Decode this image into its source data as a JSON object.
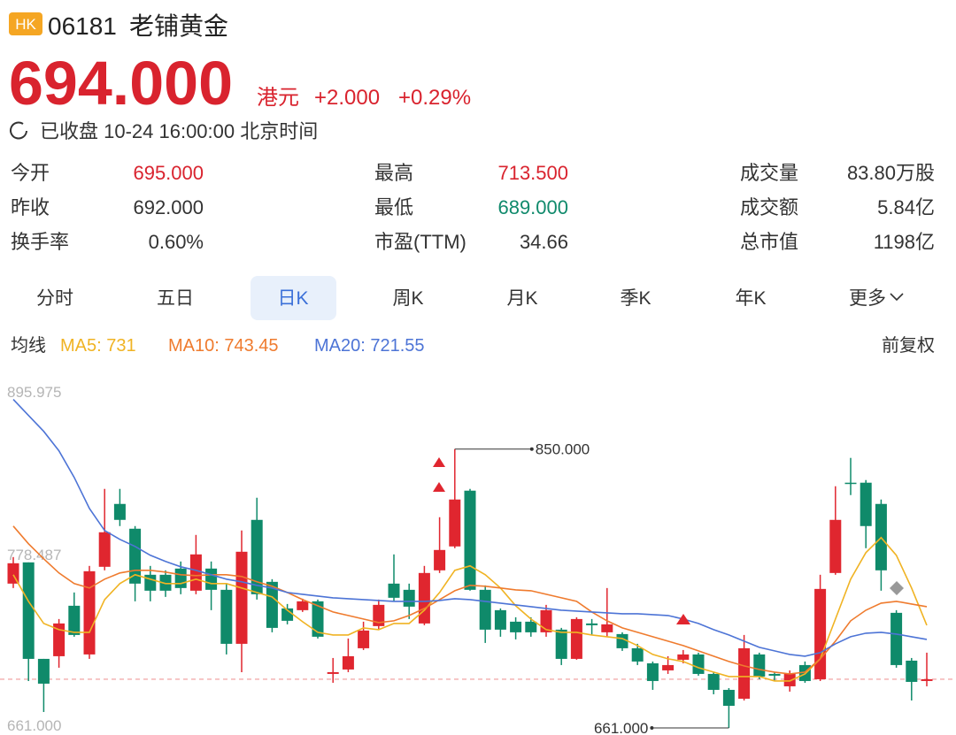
{
  "header": {
    "badge": "HK",
    "code": "06181",
    "name": "老铺黄金",
    "price": "694.000",
    "currency": "港元",
    "change": "+2.000",
    "change_pct": "+0.29%",
    "status": "已收盘 10-24 16:00:00 北京时间"
  },
  "stats": [
    [
      {
        "label": "今开",
        "value": "695.000",
        "tone": "up"
      },
      {
        "label": "最高",
        "value": "713.500",
        "tone": "up"
      },
      {
        "label": "成交量",
        "value": "83.80万股",
        "tone": "plain"
      }
    ],
    [
      {
        "label": "昨收",
        "value": "692.000",
        "tone": "plain"
      },
      {
        "label": "最低",
        "value": "689.000",
        "tone": "down"
      },
      {
        "label": "成交额",
        "value": "5.84亿",
        "tone": "plain"
      }
    ],
    [
      {
        "label": "换手率",
        "value": "0.60%",
        "tone": "plain"
      },
      {
        "label": "市盈(TTM)",
        "value": "34.66",
        "tone": "plain"
      },
      {
        "label": "总市值",
        "value": "1198亿",
        "tone": "plain"
      }
    ]
  ],
  "tabs": {
    "items": [
      "分时",
      "五日",
      "日K",
      "周K",
      "月K",
      "季K",
      "年K",
      "更多"
    ],
    "active": 2
  },
  "indicators": {
    "title": "均线",
    "items": [
      "MA5: 731",
      "MA10: 743.45",
      "MA20: 721.55"
    ],
    "colors": [
      "#f0b323",
      "#ef7b2e",
      "#4d74d6"
    ],
    "adjust": "前复权"
  },
  "chart_data": {
    "type": "candlestick",
    "up_color": "#e0262f",
    "down_color": "#0f8a6a",
    "ylim": [
      661,
      895.975
    ],
    "yticks": [
      {
        "value": 661,
        "label": "661.000"
      },
      778.487,
      895.975
    ],
    "price_line": 694,
    "open": [
      758.8,
      773.2,
      707.8,
      709.6,
      743.8,
      710.8,
      770.2,
      812.8,
      796,
      764.8,
      764.8,
      769,
      754,
      769,
      754.6,
      718,
      802,
      760,
      742,
      740.8,
      746.8,
      697.6,
      700.6,
      715,
      730,
      758.8,
      754.6,
      731.8,
      767.8,
      784,
      821.8,
      754.6,
      740.8,
      733,
      733,
      725.8,
      727.6,
      707.8,
      731.8,
      725.8,
      724.6,
      715,
      704.8,
      700,
      707.2,
      710.8,
      697.6,
      686.8,
      680.8,
      710.8,
      697.6,
      689.2,
      703.6,
      694,
      766,
      827.2,
      827.2,
      812.8,
      739,
      706.6,
      692.8
    ],
    "high": [
      776.8,
      773.2,
      707.8,
      734.8,
      752.8,
      770.8,
      823,
      823,
      797.8,
      770.8,
      767.8,
      773.8,
      791.8,
      773.8,
      758.8,
      794.8,
      817,
      761.8,
      745,
      748.6,
      748,
      708.4,
      721.6,
      733,
      748,
      778.6,
      758.8,
      770.8,
      803.8,
      850,
      823,
      757.6,
      742,
      736,
      736,
      744.4,
      728.8,
      736,
      734.8,
      755.8,
      725.8,
      718,
      706,
      709.6,
      713.8,
      712,
      698.8,
      688,
      724,
      712,
      698.8,
      700,
      706,
      764.8,
      824.8,
      844,
      829,
      815.8,
      740.8,
      708.4,
      712
    ],
    "low": [
      755.8,
      692.8,
      671.8,
      701.8,
      722.8,
      707.8,
      767.8,
      797.8,
      746.8,
      746.8,
      749.8,
      751.6,
      751.6,
      740.8,
      710.8,
      698.8,
      748,
      725.8,
      731.2,
      739.6,
      721.6,
      691.6,
      698.8,
      713.8,
      727.6,
      746.8,
      734.8,
      730.6,
      766,
      782.8,
      754,
      718.6,
      722.8,
      721,
      722.8,
      722.8,
      703.6,
      707.2,
      724,
      722.8,
      713.2,
      703.6,
      686.8,
      697.6,
      704.8,
      696.4,
      683.8,
      661,
      679.6,
      694,
      692.8,
      685.6,
      691.6,
      692.8,
      764.8,
      818.8,
      782.8,
      754,
      701.8,
      679.6,
      689.2
    ],
    "close": [
      772.6,
      707.8,
      691,
      731.8,
      724,
      767.2,
      793.6,
      802,
      758.8,
      754,
      754,
      755.8,
      778.6,
      754.6,
      718,
      780.4,
      751.6,
      728.8,
      733.6,
      746.8,
      722.8,
      698.8,
      709.6,
      727,
      744.4,
      749.2,
      743.2,
      766,
      781.6,
      815.8,
      754.6,
      727.6,
      727.6,
      725.8,
      725.8,
      740.8,
      707.8,
      734.8,
      730.6,
      731.2,
      715,
      706,
      692.8,
      703.6,
      710.8,
      697.6,
      686.8,
      676,
      715,
      695.8,
      696.4,
      697.6,
      692.8,
      755.2,
      802,
      826.6,
      797.8,
      767.8,
      703.6,
      692.2,
      694
    ],
    "lines": [
      {
        "color": "#f0b323",
        "values": [
          764.8,
          746.8,
          731.8,
          727.6,
          725.8,
          725.8,
          748,
          758.8,
          764.8,
          761.8,
          758.8,
          758.8,
          761.8,
          758.8,
          758.8,
          755.8,
          752.8,
          749.8,
          740.8,
          733,
          725.8,
          724,
          724,
          728.8,
          727.6,
          731.8,
          731.8,
          740.8,
          752.8,
          767.8,
          770.8,
          764.8,
          755.8,
          743.8,
          734.8,
          727.6,
          725.8,
          725.8,
          724,
          722.8,
          721.6,
          716.8,
          710.8,
          707.8,
          706,
          701.8,
          698.8,
          695.8,
          695.8,
          695.8,
          692.8,
          692.8,
          697.6,
          707.8,
          734.8,
          761.8,
          779.8,
          790,
          778,
          755.8,
          730.6
        ]
      },
      {
        "color": "#ef7b2e",
        "values": [
          797.8,
          785.8,
          775.6,
          766,
          758.8,
          755.8,
          761.8,
          766,
          767.8,
          767.8,
          766.6,
          764.8,
          764.2,
          764.8,
          764.8,
          763.6,
          760,
          757,
          752.8,
          748,
          743.8,
          739.6,
          737.2,
          734.8,
          732.4,
          733.6,
          737.2,
          742,
          748,
          754,
          757.6,
          757,
          755.8,
          754.6,
          754,
          751.6,
          749.2,
          746.8,
          739.6,
          733.6,
          728.8,
          725.8,
          722.8,
          719.8,
          716.8,
          713.2,
          709.6,
          706,
          703,
          700.6,
          698.8,
          697.6,
          698.8,
          707.8,
          719.8,
          733.6,
          740.8,
          745.6,
          746.8,
          745,
          743.2
        ]
      },
      {
        "color": "#4d74d6",
        "values": [
          883.6,
          872.8,
          862,
          848.8,
          830.8,
          809.8,
          794.8,
          788.8,
          784,
          778,
          773.8,
          770.2,
          767.8,
          764.8,
          761.8,
          760,
          757.6,
          755.8,
          752.8,
          751.6,
          750.4,
          749.2,
          748.6,
          748,
          747.4,
          746.8,
          746.8,
          746.8,
          747.4,
          748.6,
          748,
          746.8,
          745.6,
          744.4,
          743.2,
          742,
          740.8,
          740.2,
          739.6,
          739,
          738.4,
          738.4,
          737.8,
          737.2,
          734.8,
          731.8,
          727.6,
          724,
          719.8,
          715.6,
          713.2,
          710.8,
          709.6,
          712,
          718,
          722.8,
          725.2,
          725.8,
          724.6,
          722.8,
          721
        ]
      }
    ],
    "annotations": [
      {
        "value": 850,
        "label": "850.000"
      },
      {
        "value": 661,
        "label": "661.000"
      }
    ]
  }
}
